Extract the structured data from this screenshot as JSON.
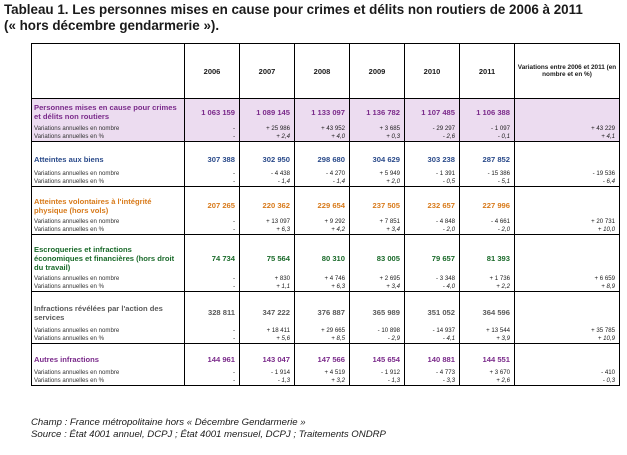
{
  "title_line1": "Tableau 1. Les personnes mises en cause pour crimes et délits non routiers de 2006 à 2011",
  "title_line2": "(« hors décembre gendarmerie »).",
  "years": [
    "2006",
    "2007",
    "2008",
    "2009",
    "2010",
    "2011"
  ],
  "variation_header": "Variations entre 2006 et 2011 (en nombre et en %)",
  "sub_label_nombre": "Variations annuelles en nombre",
  "sub_label_pct": "Variations annuelles en %",
  "colors": {
    "purple_bg": "#ecdcf0",
    "purple_text": "#7a2a8a",
    "blue_text": "#2a4a8a",
    "orange_text": "#d87a1a",
    "green_text": "#1a6a2a",
    "grey_text": "#5a5a5a"
  },
  "rows": [
    {
      "label": "Personnes mises en cause pour crimes et délits non routiers",
      "style": "purple",
      "values": [
        "1 063 159",
        "1 089 145",
        "1 133 097",
        "1 136 782",
        "1 107 485",
        "1 106 388"
      ],
      "var_nombre": [
        "-",
        "+ 25 986",
        "+ 43 952",
        "+ 3 685",
        "- 29 297",
        "- 1 097",
        "+ 43 229"
      ],
      "var_pct": [
        "-",
        "+ 2,4",
        "+ 4,0",
        "+ 0,3",
        "- 2,6",
        "- 0,1",
        "+ 4,1"
      ]
    },
    {
      "label": "Atteintes aux biens",
      "style": "blue",
      "values": [
        "307 388",
        "302 950",
        "298 680",
        "304 629",
        "303 238",
        "287 852"
      ],
      "var_nombre": [
        "-",
        "- 4 438",
        "- 4 270",
        "+ 5 949",
        "- 1 391",
        "- 15 386",
        "- 19 536"
      ],
      "var_pct": [
        "-",
        "- 1,4",
        "- 1,4",
        "+ 2,0",
        "- 0,5",
        "- 5,1",
        "- 6,4"
      ]
    },
    {
      "label": "Atteintes volontaires à l'intégrité physique (hors vols)",
      "style": "orange",
      "values": [
        "207 265",
        "220 362",
        "229 654",
        "237 505",
        "232 657",
        "227 996"
      ],
      "var_nombre": [
        "-",
        "+ 13 097",
        "+ 9 292",
        "+ 7 851",
        "- 4 848",
        "- 4 661",
        "+ 20 731"
      ],
      "var_pct": [
        "-",
        "+ 6,3",
        "+ 4,2",
        "+ 3,4",
        "- 2,0",
        "- 2,0",
        "+ 10,0"
      ]
    },
    {
      "label": "Escroqueries et infractions économiques et financières (hors droit du travail)",
      "style": "green",
      "values": [
        "74 734",
        "75 564",
        "80 310",
        "83 005",
        "79 657",
        "81 393"
      ],
      "var_nombre": [
        "-",
        "+ 830",
        "+ 4 746",
        "+ 2 695",
        "- 3 348",
        "+ 1 736",
        "+ 6 659"
      ],
      "var_pct": [
        "-",
        "+ 1,1",
        "+ 6,3",
        "+ 3,4",
        "- 4,0",
        "+ 2,2",
        "+ 8,9"
      ]
    },
    {
      "label": "Infractions révélées par l'action des services",
      "style": "grey",
      "values": [
        "328 811",
        "347 222",
        "376 887",
        "365 989",
        "351 052",
        "364 596"
      ],
      "var_nombre": [
        "-",
        "+ 18 411",
        "+ 29 665",
        "- 10 898",
        "- 14 937",
        "+ 13 544",
        "+ 35 785"
      ],
      "var_pct": [
        "-",
        "+ 5,6",
        "+ 8,5",
        "- 2,9",
        "- 4,1",
        "+ 3,9",
        "+ 10,9"
      ]
    },
    {
      "label": "Autres infractions",
      "style": "purple2",
      "values": [
        "144 961",
        "143 047",
        "147 566",
        "145 654",
        "140 881",
        "144 551"
      ],
      "var_nombre": [
        "-",
        "- 1 914",
        "+ 4 519",
        "- 1 912",
        "- 4 773",
        "+ 3 670",
        "- 410"
      ],
      "var_pct": [
        "-",
        "- 1,3",
        "+ 3,2",
        "- 1,3",
        "- 3,3",
        "+ 2,6",
        "- 0,3"
      ]
    }
  ],
  "footnote_champ": "Champ : France métropolitaine hors « Décembre Gendarmerie »",
  "footnote_source": "Source : État 4001 annuel, DCPJ ; État 4001 mensuel, DCPJ ; Traitements ONDRP"
}
